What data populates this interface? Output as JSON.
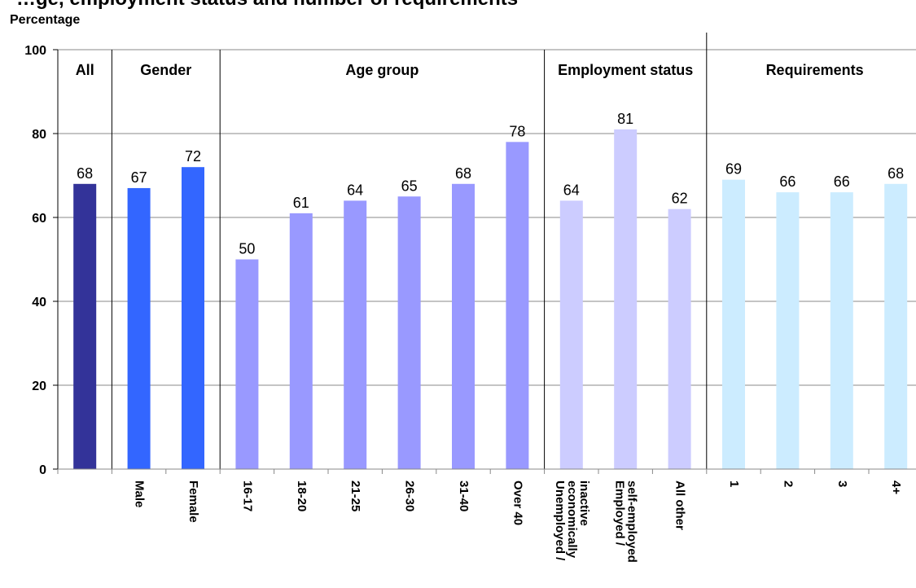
{
  "chart_data": {
    "type": "bar",
    "title": "…ge, employment status and number of requirements",
    "ylabel": "Percentage",
    "ylim": [
      0,
      100
    ],
    "yticks": [
      0,
      20,
      40,
      60,
      80,
      100
    ],
    "grid": true,
    "groups": [
      {
        "label": "All",
        "color": "#333399",
        "categories": [
          ""
        ],
        "values": [
          68
        ]
      },
      {
        "label": "Gender",
        "color": "#3366FF",
        "categories": [
          "Male",
          "Female"
        ],
        "values": [
          67,
          72
        ]
      },
      {
        "label": "Age group",
        "color": "#9999FF",
        "categories": [
          "16-17",
          "18-20",
          "21-25",
          "26-30",
          "31-40",
          "Over 40"
        ],
        "values": [
          50,
          61,
          64,
          65,
          68,
          78
        ]
      },
      {
        "label": "Employment status",
        "color": "#CCCCFF",
        "categories": [
          "Unemployed / economically inactive",
          "Employed / self-employed",
          "All other"
        ],
        "values": [
          64,
          81,
          62
        ]
      },
      {
        "label": "Requirements",
        "color": "#CCECFF",
        "categories": [
          "1",
          "2",
          "3",
          "4+"
        ],
        "values": [
          69,
          66,
          66,
          68
        ]
      }
    ],
    "data_labels": [
      "68",
      "67",
      "72",
      "50",
      "61",
      "64",
      "65",
      "68",
      "78",
      "64",
      "81",
      "62",
      "69",
      "66",
      "66",
      "68"
    ]
  }
}
